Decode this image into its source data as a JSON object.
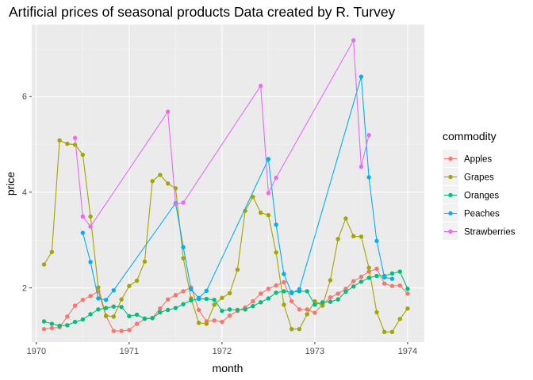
{
  "chart_data": {
    "type": "line",
    "title": "Artificial prices of seasonal products Data created by R. Turvey",
    "xlabel": "month",
    "ylabel": "price",
    "xlim": [
      1969.95,
      1974.18
    ],
    "ylim": [
      0.87,
      7.5
    ],
    "x_ticks": [
      1970,
      1971,
      1972,
      1973,
      1974
    ],
    "x_tick_labels": [
      "1970",
      "1971",
      "1972",
      "1973",
      "1974"
    ],
    "y_ticks": [
      2,
      4,
      6
    ],
    "y_tick_labels": [
      "2",
      "4",
      "6"
    ],
    "grid": true,
    "legend": {
      "title": "commodity",
      "position": "right"
    },
    "series": [
      {
        "name": "Apples",
        "color": "#F8766D",
        "x": [
          1970.083,
          1970.167,
          1970.25,
          1970.333,
          1970.417,
          1970.5,
          1970.583,
          1970.667,
          1970.75,
          1970.833,
          1970.917,
          1971.0,
          1971.083,
          1971.167,
          1971.25,
          1971.333,
          1971.417,
          1971.5,
          1971.583,
          1971.667,
          1971.75,
          1971.833,
          1971.917,
          1972.0,
          1972.083,
          1972.167,
          1972.25,
          1972.333,
          1972.417,
          1972.5,
          1972.583,
          1972.667,
          1972.75,
          1972.833,
          1972.917,
          1973.0,
          1973.083,
          1973.167,
          1973.25,
          1973.333,
          1973.417,
          1973.5,
          1973.583,
          1973.667,
          1973.75,
          1973.833,
          1973.917,
          1974.0
        ],
        "values": [
          1.14,
          1.16,
          1.18,
          1.4,
          1.63,
          1.75,
          1.83,
          1.93,
          1.41,
          1.1,
          1.1,
          1.12,
          1.25,
          1.35,
          1.37,
          1.57,
          1.76,
          1.85,
          1.93,
          2.01,
          1.54,
          1.3,
          1.32,
          1.29,
          1.42,
          1.52,
          1.59,
          1.72,
          1.88,
          1.98,
          2.05,
          2.12,
          1.72,
          1.55,
          1.55,
          1.48,
          1.65,
          1.8,
          1.88,
          1.98,
          2.14,
          2.23,
          2.34,
          2.4,
          2.09,
          2.04,
          2.05,
          1.88
        ]
      },
      {
        "name": "Grapes",
        "color": "#A3A500",
        "x": [
          1970.083,
          1970.167,
          1970.25,
          1970.333,
          1970.417,
          1970.5,
          1970.583,
          1970.667,
          1970.75,
          1970.833,
          1970.917,
          1971.0,
          1971.083,
          1971.167,
          1971.25,
          1971.333,
          1971.417,
          1971.5,
          1971.583,
          1971.667,
          1971.75,
          1971.833,
          1971.917,
          1972.0,
          1972.083,
          1972.167,
          1972.25,
          1972.333,
          1972.417,
          1972.5,
          1972.583,
          1972.667,
          1972.75,
          1972.833,
          1972.917,
          1973.0,
          1973.083,
          1973.167,
          1973.25,
          1973.333,
          1973.417,
          1973.5,
          1973.583,
          1973.667,
          1973.75,
          1973.833,
          1973.917,
          1974.0
        ],
        "values": [
          2.49,
          2.75,
          5.08,
          5.01,
          4.99,
          4.78,
          3.49,
          2.01,
          1.42,
          1.4,
          1.76,
          2.04,
          2.15,
          2.55,
          4.23,
          4.36,
          4.18,
          4.08,
          2.62,
          1.78,
          1.27,
          1.25,
          1.65,
          1.79,
          1.89,
          2.38,
          3.61,
          3.9,
          3.57,
          3.52,
          2.74,
          1.65,
          1.14,
          1.14,
          1.45,
          1.72,
          1.63,
          2.16,
          3.02,
          3.45,
          3.08,
          3.07,
          2.42,
          1.49,
          1.08,
          1.08,
          1.35,
          1.57
        ]
      },
      {
        "name": "Oranges",
        "color": "#00BF7D",
        "x": [
          1970.083,
          1970.167,
          1970.25,
          1970.333,
          1970.417,
          1970.5,
          1970.583,
          1970.667,
          1970.75,
          1970.833,
          1970.917,
          1971.0,
          1971.083,
          1971.167,
          1971.25,
          1971.333,
          1971.417,
          1971.5,
          1971.583,
          1971.667,
          1971.75,
          1971.833,
          1971.917,
          1972.0,
          1972.083,
          1972.167,
          1972.25,
          1972.333,
          1972.417,
          1972.5,
          1972.583,
          1972.667,
          1972.75,
          1972.833,
          1972.917,
          1973.0,
          1973.083,
          1973.167,
          1973.25,
          1973.333,
          1973.417,
          1973.5,
          1973.583,
          1973.667,
          1973.75,
          1973.833,
          1973.917,
          1974.0
        ],
        "values": [
          1.3,
          1.25,
          1.21,
          1.22,
          1.29,
          1.34,
          1.45,
          1.55,
          1.58,
          1.61,
          1.6,
          1.41,
          1.44,
          1.36,
          1.37,
          1.49,
          1.54,
          1.58,
          1.66,
          1.74,
          1.77,
          1.77,
          1.75,
          1.52,
          1.55,
          1.54,
          1.55,
          1.62,
          1.7,
          1.78,
          1.9,
          1.93,
          1.91,
          1.93,
          1.93,
          1.65,
          1.7,
          1.71,
          1.76,
          1.92,
          2.03,
          2.13,
          2.21,
          2.25,
          2.25,
          2.3,
          2.34,
          1.98
        ]
      },
      {
        "name": "Peaches",
        "color": "#00B0F6",
        "x": [
          1970.5,
          1970.583,
          1970.667,
          1970.75,
          1970.833,
          1971.5,
          1971.583,
          1971.667,
          1971.75,
          1971.833,
          1972.5,
          1972.583,
          1972.667,
          1972.75,
          1972.833,
          1973.5,
          1973.583,
          1973.667,
          1973.75,
          1973.833
        ],
        "values": [
          3.15,
          2.54,
          1.78,
          1.75,
          1.95,
          3.77,
          2.85,
          1.97,
          1.79,
          1.94,
          4.69,
          3.32,
          2.29,
          1.89,
          1.97,
          6.41,
          4.31,
          2.98,
          2.22,
          2.19
        ]
      },
      {
        "name": "Strawberries",
        "color": "#E76BF3",
        "x": [
          1970.417,
          1970.5,
          1970.583,
          1971.417,
          1971.5,
          1971.583,
          1972.417,
          1972.5,
          1972.583,
          1973.417,
          1973.5,
          1973.583
        ],
        "values": [
          5.13,
          3.49,
          3.28,
          5.68,
          3.75,
          3.78,
          6.22,
          3.98,
          4.3,
          7.17,
          4.53,
          5.19
        ]
      }
    ]
  }
}
